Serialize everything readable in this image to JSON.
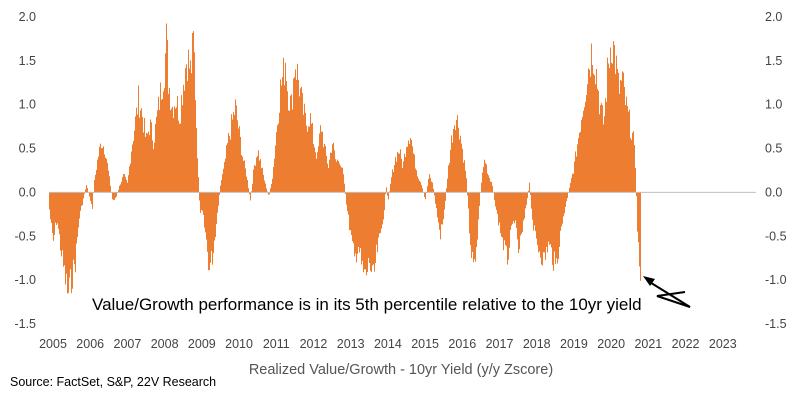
{
  "chart_data": {
    "type": "area",
    "title": "",
    "xlabel": "Realized Value/Growth - 10yr Yield (y/y Zscore)",
    "ylabel": "",
    "xlim": [
      2005,
      2024
    ],
    "ylim": [
      -1.5,
      2.0
    ],
    "x_tick_labels": [
      "2005",
      "2006",
      "2007",
      "2008",
      "2009",
      "2010",
      "2011",
      "2012",
      "2013",
      "2014",
      "2015",
      "2016",
      "2017",
      "2018",
      "2019",
      "2020",
      "2021",
      "2022",
      "2023"
    ],
    "y_tick_labels_left": [
      "2.0",
      "1.5",
      "1.0",
      "0.5",
      "0.0",
      "-0.5",
      "-1.0",
      "-1.5"
    ],
    "y_tick_labels_right": [
      "2.0",
      "1.5",
      "1.0",
      "0.5",
      "0.0",
      "-0.5",
      "-1.0",
      "-1.5"
    ],
    "grid": false,
    "legend": "none",
    "series": [
      {
        "color": "#ED7D31",
        "points": [
          [
            2005.0,
            -0.2
          ],
          [
            2005.1,
            -0.6
          ],
          [
            2005.2,
            -0.3
          ],
          [
            2005.35,
            -0.8
          ],
          [
            2005.5,
            -1.2
          ],
          [
            2005.6,
            -1.0
          ],
          [
            2005.7,
            -0.8
          ],
          [
            2005.8,
            -0.3
          ],
          [
            2005.9,
            -0.1
          ],
          [
            2006.0,
            0.1
          ],
          [
            2006.1,
            -0.1
          ],
          [
            2006.15,
            -0.2
          ],
          [
            2006.2,
            0.1
          ],
          [
            2006.3,
            0.4
          ],
          [
            2006.4,
            0.6
          ],
          [
            2006.5,
            0.5
          ],
          [
            2006.6,
            0.2
          ],
          [
            2006.7,
            -0.1
          ],
          [
            2006.8,
            -0.05
          ],
          [
            2006.9,
            0.1
          ],
          [
            2007.0,
            0.2
          ],
          [
            2007.1,
            0.1
          ],
          [
            2007.2,
            0.5
          ],
          [
            2007.3,
            0.8
          ],
          [
            2007.4,
            1.1
          ],
          [
            2007.5,
            0.9
          ],
          [
            2007.6,
            0.6
          ],
          [
            2007.7,
            0.8
          ],
          [
            2007.8,
            0.6
          ],
          [
            2007.9,
            0.9
          ],
          [
            2008.0,
            1.2
          ],
          [
            2008.1,
            1.5
          ],
          [
            2008.15,
            1.8
          ],
          [
            2008.2,
            1.3
          ],
          [
            2008.3,
            1.0
          ],
          [
            2008.4,
            1.1
          ],
          [
            2008.5,
            0.9
          ],
          [
            2008.6,
            1.3
          ],
          [
            2008.7,
            1.6
          ],
          [
            2008.8,
            1.4
          ],
          [
            2008.88,
            1.8
          ],
          [
            2008.95,
            0.8
          ],
          [
            2009.0,
            0.2
          ],
          [
            2009.05,
            -0.3
          ],
          [
            2009.1,
            -0.2
          ],
          [
            2009.2,
            -0.5
          ],
          [
            2009.3,
            -0.9
          ],
          [
            2009.4,
            -0.7
          ],
          [
            2009.5,
            -0.3
          ],
          [
            2009.55,
            -0.1
          ],
          [
            2009.6,
            0.1
          ],
          [
            2009.7,
            0.3
          ],
          [
            2009.8,
            0.6
          ],
          [
            2009.9,
            0.8
          ],
          [
            2010.0,
            1.0
          ],
          [
            2010.1,
            0.7
          ],
          [
            2010.2,
            0.4
          ],
          [
            2010.3,
            0.2
          ],
          [
            2010.4,
            -0.1
          ],
          [
            2010.5,
            0.3
          ],
          [
            2010.6,
            0.5
          ],
          [
            2010.7,
            0.3
          ],
          [
            2010.8,
            0.1
          ],
          [
            2010.9,
            -0.05
          ],
          [
            2011.0,
            0.2
          ],
          [
            2011.1,
            0.7
          ],
          [
            2011.2,
            1.2
          ],
          [
            2011.3,
            1.4
          ],
          [
            2011.35,
            1.6
          ],
          [
            2011.4,
            1.2
          ],
          [
            2011.5,
            1.0
          ],
          [
            2011.6,
            1.55
          ],
          [
            2011.7,
            1.3
          ],
          [
            2011.8,
            1.0
          ],
          [
            2011.9,
            0.8
          ],
          [
            2012.0,
            0.9
          ],
          [
            2012.1,
            0.6
          ],
          [
            2012.2,
            0.4
          ],
          [
            2012.3,
            0.8
          ],
          [
            2012.4,
            0.5
          ],
          [
            2012.5,
            0.3
          ],
          [
            2012.6,
            0.6
          ],
          [
            2012.7,
            0.35
          ],
          [
            2012.8,
            0.4
          ],
          [
            2012.9,
            0.2
          ],
          [
            2013.0,
            -0.2
          ],
          [
            2013.1,
            -0.5
          ],
          [
            2013.2,
            -0.8
          ],
          [
            2013.3,
            -0.6
          ],
          [
            2013.4,
            -0.9
          ],
          [
            2013.5,
            -1.0
          ],
          [
            2013.6,
            -0.8
          ],
          [
            2013.7,
            -1.05
          ],
          [
            2013.8,
            -0.7
          ],
          [
            2013.9,
            -0.5
          ],
          [
            2014.0,
            -0.2
          ],
          [
            2014.05,
            0.1
          ],
          [
            2014.1,
            -0.1
          ],
          [
            2014.2,
            0.2
          ],
          [
            2014.3,
            0.4
          ],
          [
            2014.4,
            0.5
          ],
          [
            2014.5,
            0.3
          ],
          [
            2014.6,
            0.6
          ],
          [
            2014.7,
            0.7
          ],
          [
            2014.8,
            0.4
          ],
          [
            2014.9,
            0.2
          ],
          [
            2015.0,
            0.1
          ],
          [
            2015.1,
            -0.1
          ],
          [
            2015.2,
            0.2
          ],
          [
            2015.3,
            0.1
          ],
          [
            2015.4,
            -0.2
          ],
          [
            2015.5,
            -0.5
          ],
          [
            2015.6,
            -0.3
          ],
          [
            2015.7,
            0.2
          ],
          [
            2015.8,
            0.6
          ],
          [
            2015.9,
            0.9
          ],
          [
            2016.0,
            0.8
          ],
          [
            2016.1,
            0.5
          ],
          [
            2016.2,
            0.2
          ],
          [
            2016.3,
            -0.5
          ],
          [
            2016.4,
            -0.9
          ],
          [
            2016.5,
            -0.5
          ],
          [
            2016.6,
            0.1
          ],
          [
            2016.7,
            0.4
          ],
          [
            2016.8,
            0.2
          ],
          [
            2016.9,
            0.1
          ],
          [
            2017.0,
            -0.2
          ],
          [
            2017.1,
            -0.4
          ],
          [
            2017.2,
            -0.6
          ],
          [
            2017.3,
            -0.8
          ],
          [
            2017.4,
            -0.5
          ],
          [
            2017.5,
            -0.3
          ],
          [
            2017.6,
            -0.7
          ],
          [
            2017.7,
            -0.5
          ],
          [
            2017.8,
            -0.2
          ],
          [
            2017.9,
            0.1
          ],
          [
            2018.0,
            -0.4
          ],
          [
            2018.1,
            -0.6
          ],
          [
            2018.2,
            -0.7
          ],
          [
            2018.3,
            -0.8
          ],
          [
            2018.4,
            -0.6
          ],
          [
            2018.5,
            -0.7
          ],
          [
            2018.6,
            -0.9
          ],
          [
            2018.7,
            -0.6
          ],
          [
            2018.8,
            -0.3
          ],
          [
            2018.9,
            -0.1
          ],
          [
            2019.0,
            0.1
          ],
          [
            2019.1,
            0.3
          ],
          [
            2019.2,
            0.6
          ],
          [
            2019.3,
            0.9
          ],
          [
            2019.4,
            1.2
          ],
          [
            2019.5,
            1.5
          ],
          [
            2019.6,
            1.7
          ],
          [
            2019.7,
            1.4
          ],
          [
            2019.8,
            1.0
          ],
          [
            2019.9,
            0.8
          ],
          [
            2020.0,
            1.4
          ],
          [
            2020.1,
            1.8
          ],
          [
            2020.2,
            1.6
          ],
          [
            2020.3,
            1.2
          ],
          [
            2020.4,
            1.3
          ],
          [
            2020.5,
            1.0
          ],
          [
            2020.6,
            0.8
          ],
          [
            2020.7,
            0.6
          ],
          [
            2020.75,
            0.3
          ],
          [
            2020.8,
            -0.4
          ],
          [
            2020.85,
            -0.8
          ],
          [
            2020.9,
            -0.95
          ]
        ]
      }
    ],
    "annotations": [
      {
        "text": "Value/Growth  performance  is in its 5th percentile  relative to the 10yr yield"
      }
    ]
  },
  "source_text": "Source: FactSet, S&P, 22V Research"
}
